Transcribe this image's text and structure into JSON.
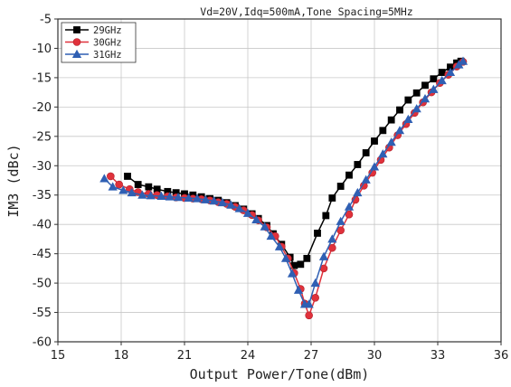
{
  "chart_data": {
    "type": "line",
    "title": "Vd=20V,Idq=500mA,Tone Spacing=5MHz",
    "xlabel": "Output Power/Tone(dBm)",
    "ylabel": "IM3 (dBc)",
    "xlim": [
      15,
      36
    ],
    "ylim": [
      -60,
      -5
    ],
    "xticks": [
      "15",
      "18",
      "21",
      "24",
      "27",
      "30",
      "33",
      "36"
    ],
    "yticks": [
      "-5",
      "-10",
      "-15",
      "-20",
      "-25",
      "-30",
      "-35",
      "-40",
      "-45",
      "-50",
      "-55",
      "-60"
    ],
    "grid": true,
    "legend_position": "top-left",
    "series": [
      {
        "name": "29GHz",
        "color": "#000000",
        "marker": "square",
        "x": [
          18.3,
          18.8,
          19.3,
          19.7,
          20.2,
          20.6,
          21.0,
          21.4,
          21.8,
          22.2,
          22.6,
          23.0,
          23.4,
          23.8,
          24.2,
          24.5,
          24.9,
          25.2,
          25.6,
          26.0,
          26.2,
          26.5,
          26.8,
          27.3,
          27.7,
          28.0,
          28.4,
          28.8,
          29.2,
          29.6,
          30.0,
          30.4,
          30.8,
          31.2,
          31.6,
          32.0,
          32.4,
          32.8,
          33.2,
          33.6,
          33.9,
          34.1
        ],
        "y": [
          -31.8,
          -33.2,
          -33.6,
          -34.0,
          -34.4,
          -34.6,
          -34.8,
          -35.0,
          -35.3,
          -35.6,
          -35.9,
          -36.3,
          -36.8,
          -37.4,
          -38.2,
          -39.0,
          -40.2,
          -41.6,
          -43.4,
          -45.6,
          -47.0,
          -46.8,
          -45.8,
          -41.5,
          -38.5,
          -35.5,
          -33.5,
          -31.6,
          -29.8,
          -27.8,
          -25.8,
          -24.0,
          -22.2,
          -20.5,
          -18.8,
          -17.6,
          -16.3,
          -15.2,
          -14.1,
          -13.2,
          -12.5,
          -12.2
        ]
      },
      {
        "name": "30GHz",
        "color": "#e0313b",
        "marker": "circle",
        "x": [
          17.5,
          17.9,
          18.4,
          18.8,
          19.3,
          19.7,
          20.2,
          20.6,
          21.0,
          21.4,
          21.8,
          22.2,
          22.6,
          23.0,
          23.4,
          23.8,
          24.2,
          24.5,
          24.9,
          25.3,
          25.6,
          25.9,
          26.2,
          26.5,
          26.7,
          26.9,
          27.2,
          27.6,
          28.0,
          28.4,
          28.8,
          29.1,
          29.5,
          29.9,
          30.3,
          30.7,
          31.1,
          31.5,
          31.9,
          32.3,
          32.7,
          33.1,
          33.5,
          33.9,
          34.2
        ],
        "y": [
          -31.8,
          -33.2,
          -34.0,
          -34.5,
          -34.8,
          -35.0,
          -35.2,
          -35.4,
          -35.5,
          -35.6,
          -35.7,
          -35.9,
          -36.2,
          -36.5,
          -37.0,
          -37.6,
          -38.4,
          -39.3,
          -40.5,
          -42.0,
          -43.8,
          -45.8,
          -48.3,
          -51.0,
          -53.5,
          -55.5,
          -52.5,
          -47.5,
          -44.0,
          -41.0,
          -38.3,
          -35.8,
          -33.4,
          -31.2,
          -29.0,
          -26.9,
          -24.8,
          -22.9,
          -21.0,
          -19.2,
          -17.5,
          -15.9,
          -14.5,
          -13.1,
          -12.3
        ]
      },
      {
        "name": "31GHz",
        "color": "#2f5fb3",
        "marker": "triangle",
        "x": [
          17.2,
          17.6,
          18.1,
          18.5,
          19.0,
          19.4,
          19.9,
          20.3,
          20.7,
          21.2,
          21.6,
          22.0,
          22.4,
          22.8,
          23.2,
          23.6,
          24.0,
          24.4,
          24.8,
          25.1,
          25.5,
          25.8,
          26.1,
          26.4,
          26.7,
          26.9,
          27.2,
          27.6,
          28.0,
          28.4,
          28.8,
          29.2,
          29.6,
          30.0,
          30.4,
          30.8,
          31.2,
          31.6,
          32.0,
          32.4,
          32.8,
          33.2,
          33.6,
          34.0,
          34.2
        ],
        "y": [
          -32.2,
          -33.6,
          -34.2,
          -34.6,
          -35.0,
          -35.1,
          -35.2,
          -35.3,
          -35.4,
          -35.5,
          -35.6,
          -35.8,
          -36.0,
          -36.3,
          -36.7,
          -37.3,
          -38.1,
          -39.2,
          -40.4,
          -42.0,
          -43.8,
          -45.8,
          -48.4,
          -51.2,
          -53.6,
          -53.6,
          -50.0,
          -45.5,
          -42.5,
          -39.5,
          -37.0,
          -34.6,
          -32.4,
          -30.2,
          -28.0,
          -26.0,
          -24.0,
          -22.1,
          -20.3,
          -18.6,
          -17.0,
          -15.5,
          -14.1,
          -12.8,
          -12.2
        ]
      }
    ]
  }
}
